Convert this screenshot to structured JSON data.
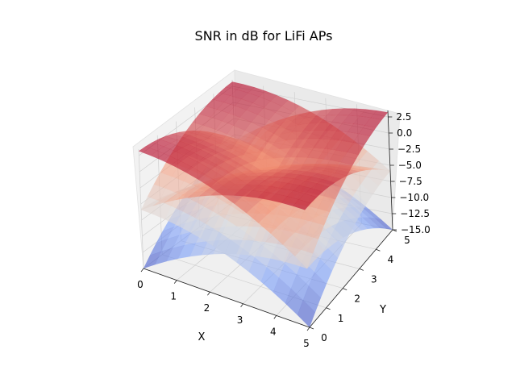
{
  "chart_data": {
    "type": "surface3d",
    "title": "SNR in dB for LiFi APs",
    "xlabel": "X",
    "ylabel": "Y",
    "zlabel": "",
    "xlim": [
      0,
      5
    ],
    "ylim": [
      0,
      5
    ],
    "zlim": [
      -15,
      3.5
    ],
    "x_ticks": [
      "0",
      "1",
      "2",
      "3",
      "4",
      "5"
    ],
    "y_ticks": [
      "0",
      "1",
      "2",
      "3",
      "4",
      "5"
    ],
    "z_ticks": [
      "2.5",
      "0.0",
      "−2.5",
      "−5.0",
      "−7.5",
      "−10.0",
      "−12.5",
      "−15.0"
    ],
    "z_tick_values": [
      2.5,
      0,
      -2.5,
      -5,
      -7.5,
      -10,
      -12.5,
      -15
    ],
    "colormap": "coolwarm",
    "grid": true,
    "series": [
      {
        "ap_x": 1.25,
        "ap_y": 1.25
      },
      {
        "ap_x": 3.75,
        "ap_y": 1.25
      },
      {
        "ap_x": 1.25,
        "ap_y": 3.75
      },
      {
        "ap_x": 3.75,
        "ap_y": 3.75
      }
    ],
    "peak_snr_db": 3.2,
    "min_snr_db": -15.0
  }
}
